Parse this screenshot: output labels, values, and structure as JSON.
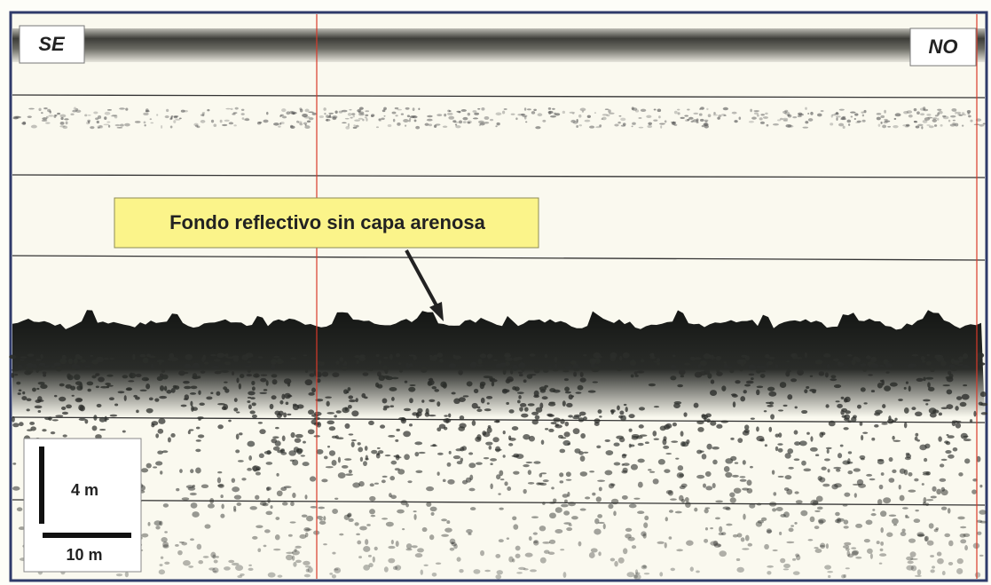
{
  "labels": {
    "left": "SE",
    "right": "NO"
  },
  "annotation": "Fondo reflectivo sin capa arenosa",
  "scale": {
    "vertical": "4 m",
    "horizontal": "10 m"
  }
}
